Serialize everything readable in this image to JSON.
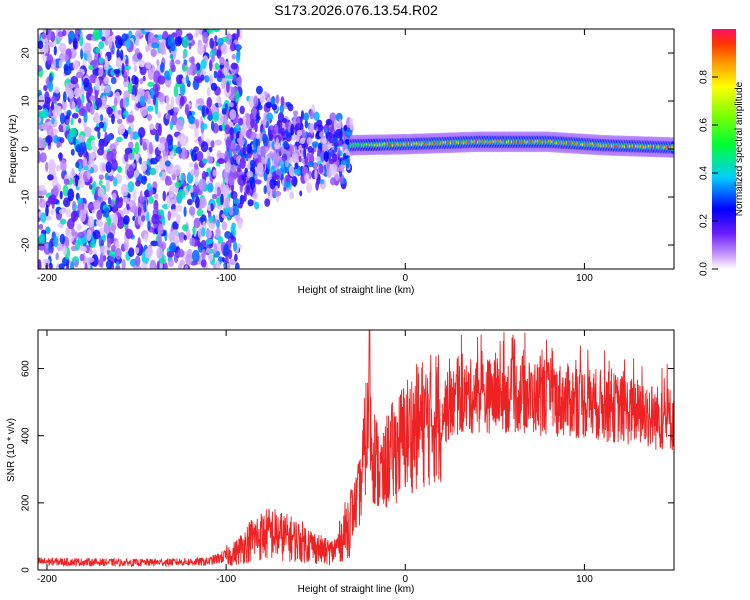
{
  "title": "S173.2026.076.13.54.R02",
  "colors": {
    "snr_line": "#ee2222",
    "axis": "#000000",
    "background": "#ffffff"
  },
  "chart_data": [
    {
      "type": "heatmap",
      "name": "spectrogram",
      "xlabel": "Height of straight line (km)",
      "ylabel": "Frequency (Hz)",
      "xlim": [
        -205,
        150
      ],
      "ylim": [
        -25,
        25
      ],
      "xticks": [
        -200,
        -100,
        0,
        100
      ],
      "yticks": [
        20,
        10,
        0,
        -10,
        -20
      ],
      "xtick_labels": [
        "-200",
        "-100",
        "0",
        "100"
      ],
      "ytick_labels": [
        "20",
        "10",
        "0",
        "-10",
        "-20"
      ],
      "regions": [
        {
          "label": "noise",
          "x_range": [
            -205,
            -100
          ],
          "freq_spread_hz": 25,
          "max_amplitude": 0.45
        },
        {
          "label": "transition",
          "x_range": [
            -100,
            -30
          ],
          "freq_spread_hz": 13,
          "max_amplitude": 0.35
        },
        {
          "label": "ridge",
          "x_range": [
            -30,
            150
          ],
          "center_hz": [
            [
              -30,
              0.8
            ],
            [
              0,
              1.0
            ],
            [
              40,
              1.5
            ],
            [
              80,
              1.5
            ],
            [
              110,
              0.8
            ],
            [
              150,
              0.3
            ]
          ],
          "half_width_hz": 1.6,
          "max_amplitude": 0.95
        }
      ],
      "colorbar": {
        "label": "Normalized spectral amplitude",
        "range": [
          0.0,
          1.0
        ],
        "ticks": [
          0.0,
          0.2,
          0.4,
          0.6,
          0.8
        ],
        "tick_labels": [
          "0.0",
          "0.2",
          "0.4",
          "0.6",
          "0.8"
        ]
      }
    },
    {
      "type": "line",
      "name": "snr",
      "xlabel": "Height of straight line (km)",
      "ylabel": "SNR (10 * v/v)",
      "xlim": [
        -205,
        150
      ],
      "ylim": [
        0,
        715
      ],
      "xticks": [
        -200,
        -100,
        0,
        100
      ],
      "yticks": [
        0,
        200,
        400,
        600
      ],
      "xtick_labels": [
        "-200",
        "-100",
        "0",
        "100"
      ],
      "ytick_labels": [
        "0",
        "200",
        "400",
        "600"
      ],
      "series": [
        {
          "name": "SNR",
          "envelope": {
            "x": [
              -205,
              -150,
              -110,
              -95,
              -85,
              -75,
              -65,
              -55,
              -45,
              -40,
              -35,
              -30,
              -25,
              -22,
              -20,
              -18,
              -15,
              -12,
              -10,
              -5,
              0,
              5,
              10,
              15,
              20,
              25,
              30,
              40,
              60,
              80,
              100,
              120,
              140,
              150
            ],
            "y": [
              25,
              22,
              25,
              50,
              95,
              110,
              95,
              80,
              55,
              55,
              100,
              160,
              240,
              400,
              430,
              360,
              300,
              280,
              330,
              360,
              400,
              420,
              440,
              450,
              470,
              490,
              510,
              520,
              520,
              510,
              500,
              480,
              455,
              450
            ]
          },
          "spike_max": 715,
          "spike_x": -20
        }
      ]
    }
  ]
}
